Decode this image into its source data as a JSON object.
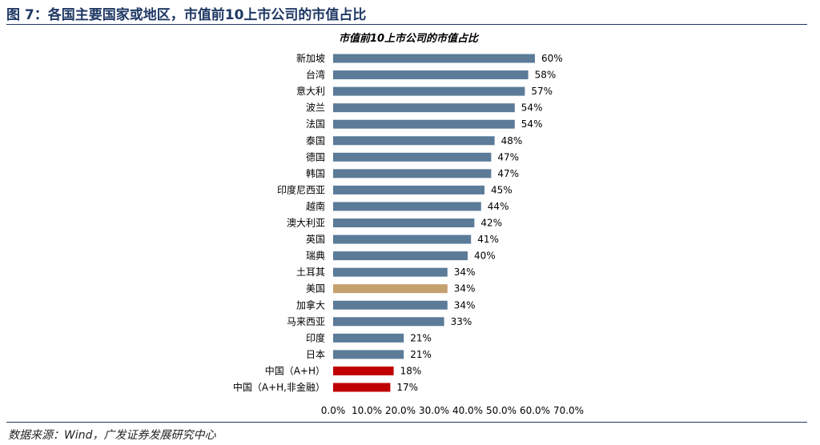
{
  "figure": {
    "title": "图 7：各国主要国家或地区，市值前10上市公司的市值占比",
    "source": "数据来源：Wind，广发证券发展研究中心"
  },
  "colors": {
    "default_bar": "#5b7b98",
    "usa_bar": "#c4a06e",
    "china_bar": "#c00000",
    "title": "#1f3864"
  },
  "chart_data": {
    "type": "bar",
    "orientation": "horizontal",
    "title": "市值前10上市公司的市值占比",
    "categories": [
      "新加坡",
      "台湾",
      "意大利",
      "波兰",
      "法国",
      "泰国",
      "德国",
      "韩国",
      "印度尼西亚",
      "越南",
      "澳大利亚",
      "英国",
      "瑞典",
      "土耳其",
      "美国",
      "加拿大",
      "马来西亚",
      "印度",
      "日本",
      "中国（A+H）",
      "中国（A+H,非金融）"
    ],
    "values": [
      60,
      58,
      57,
      54,
      54,
      48,
      47,
      47,
      45,
      44,
      42,
      41,
      40,
      34,
      34,
      34,
      33,
      21,
      21,
      18,
      17
    ],
    "value_labels": [
      "60%",
      "58%",
      "57%",
      "54%",
      "54%",
      "48%",
      "47%",
      "47%",
      "45%",
      "44%",
      "42%",
      "41%",
      "40%",
      "34%",
      "34%",
      "34%",
      "33%",
      "21%",
      "21%",
      "18%",
      "17%"
    ],
    "highlight": [
      "default",
      "default",
      "default",
      "default",
      "default",
      "default",
      "default",
      "default",
      "default",
      "default",
      "default",
      "default",
      "default",
      "default",
      "usa",
      "default",
      "default",
      "default",
      "default",
      "china",
      "china"
    ],
    "xlim": [
      0,
      70
    ],
    "xticks": [
      0,
      10,
      20,
      30,
      40,
      50,
      60,
      70
    ],
    "xtick_labels": [
      "0.0%",
      "10.0%",
      "20.0%",
      "30.0%",
      "40.0%",
      "50.0%",
      "60.0%",
      "70.0%"
    ],
    "xlabel": "",
    "ylabel": "",
    "grid": false,
    "legend": "none"
  }
}
